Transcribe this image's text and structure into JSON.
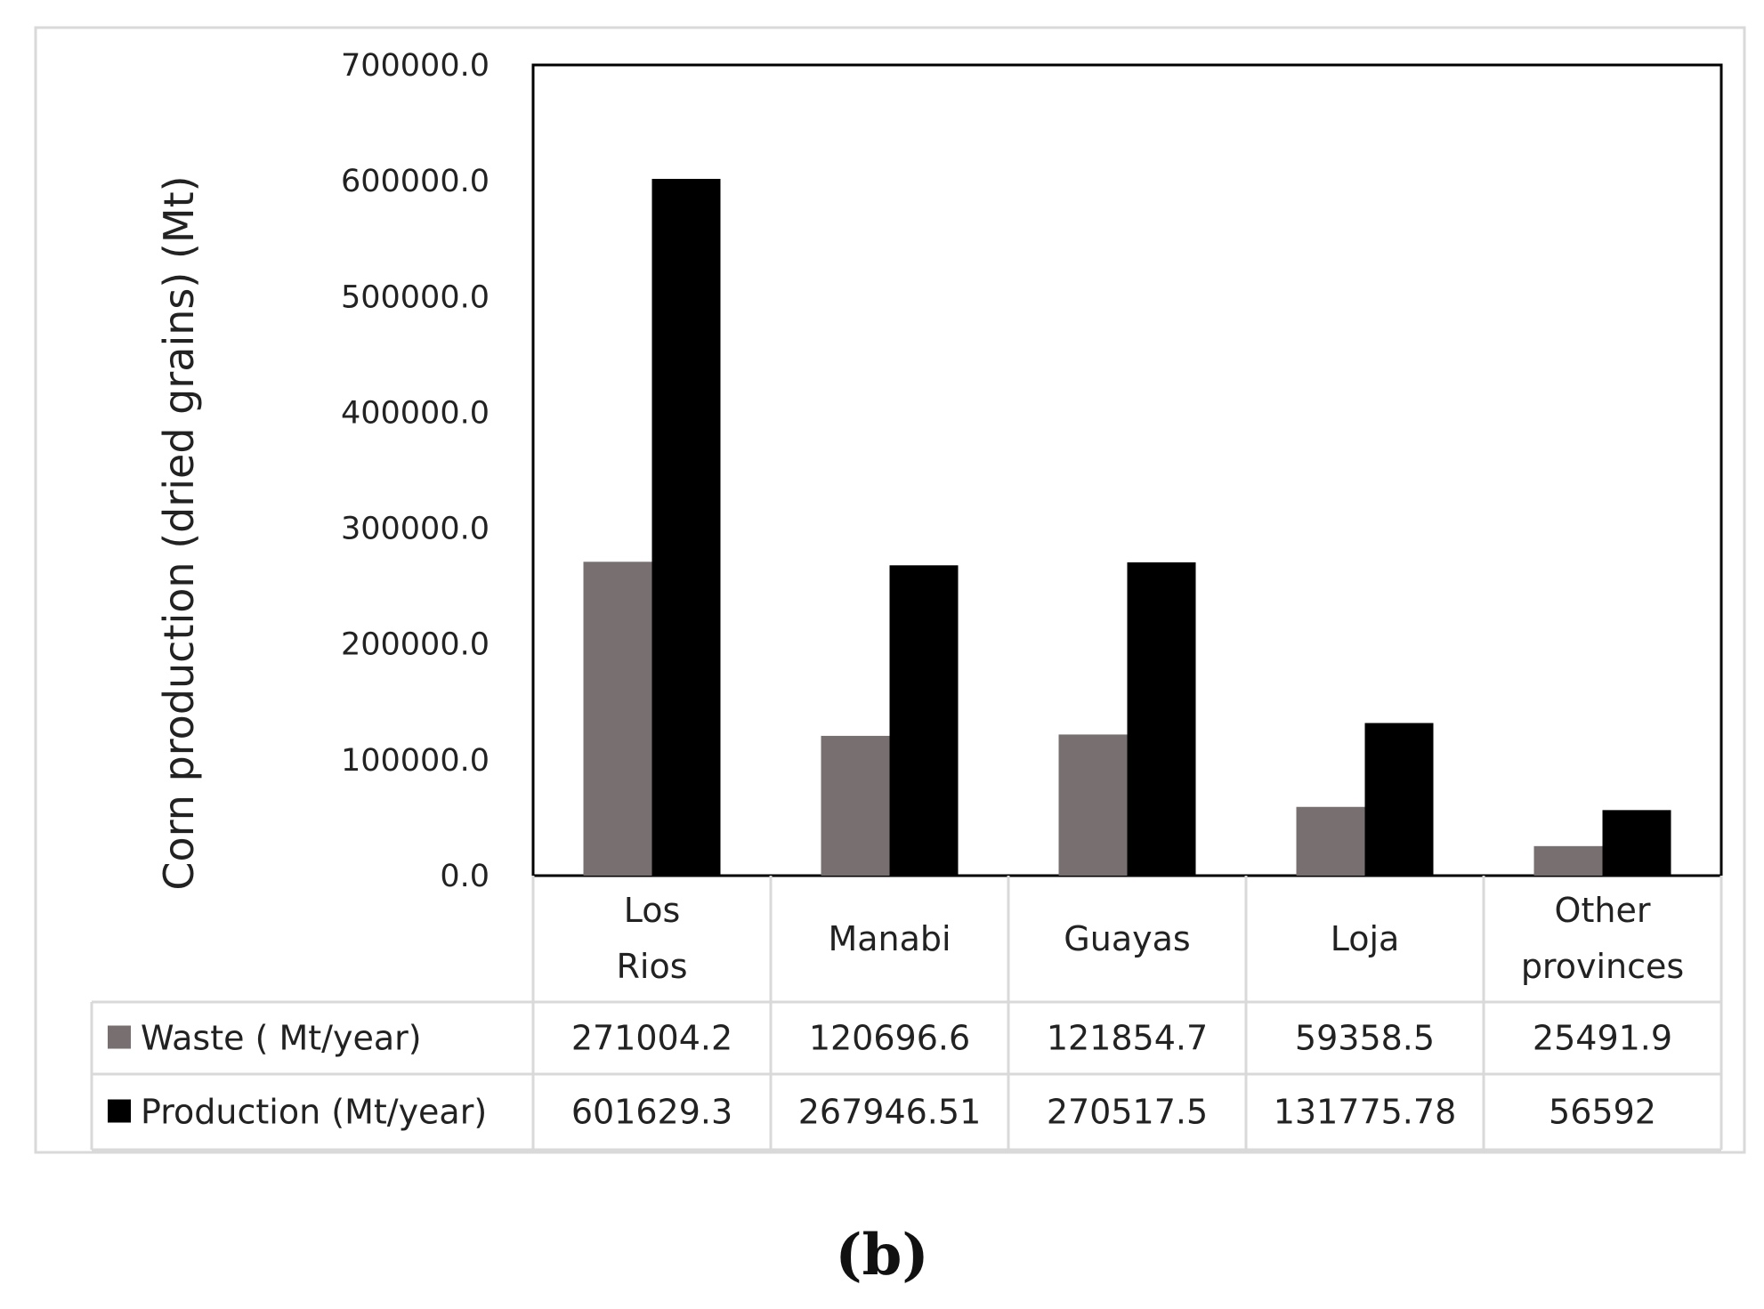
{
  "chart_data": {
    "type": "bar",
    "title": "",
    "xlabel": "",
    "ylabel": "Corn production (dried grains) (Mt)",
    "ylim": [
      0,
      700000
    ],
    "y_ticks": [
      "0.0",
      "100000.0",
      "200000.0",
      "300000.0",
      "400000.0",
      "500000.0",
      "600000.0",
      "700000.0"
    ],
    "categories": [
      "Los Rios",
      "Manabi",
      "Guayas",
      "Loja",
      "Other provinces"
    ],
    "series": [
      {
        "name": "Waste ( Mt/year)",
        "color": "#787070",
        "values": [
          271004.2,
          120696.6,
          121854.7,
          59358.5,
          25491.9
        ],
        "labels": [
          "271004.2",
          "120696.6",
          "121854.7",
          "59358.5",
          "25491.9"
        ]
      },
      {
        "name": "Production (Mt/year)",
        "color": "#000000",
        "values": [
          601629.3,
          267946.51,
          270517.5,
          131775.78,
          56592
        ],
        "labels": [
          "601629.3",
          "267946.51",
          "270517.5",
          "131775.78",
          "56592"
        ]
      }
    ],
    "grid": false,
    "legend": "data-table"
  },
  "caption": "(b)"
}
